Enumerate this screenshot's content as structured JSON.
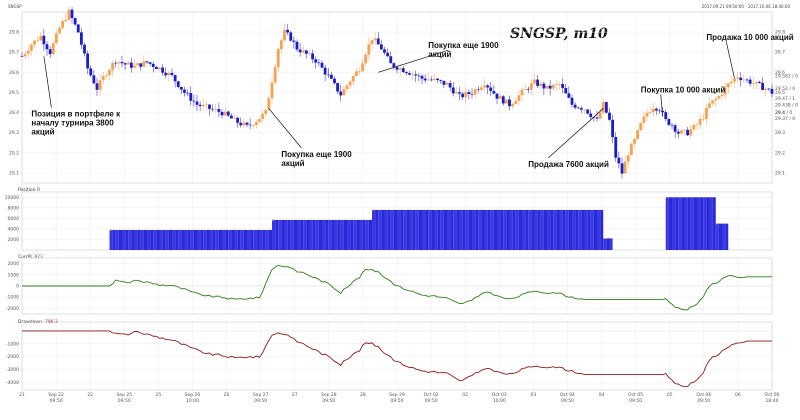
{
  "header": {
    "symbol": "SNGSP",
    "range": "2017.09.21 09:50:00 - 2017.10.06 18:40:00"
  },
  "chart_data": [
    {
      "type": "candlestick",
      "name": "price",
      "title": "SNGSP, m10",
      "ylim": [
        29.05,
        29.9
      ],
      "y_ticks": [
        29.1,
        29.2,
        29.3,
        29.4,
        29.5,
        29.6,
        29.7,
        29.8
      ],
      "right_labels": [
        {
          "y": 29.583,
          "text": "29.583 / 0"
        },
        {
          "y": 29.52,
          "text": "29.52 / 0"
        },
        {
          "y": 29.47,
          "text": "29.47 / 1"
        },
        {
          "y": 29.438,
          "text": "29.438 / 0"
        },
        {
          "y": 29.4,
          "text": "29.4 / 0"
        },
        {
          "y": 29.37,
          "text": "29.37 / 0"
        }
      ],
      "x_labels": [
        {
          "i": 0,
          "l1": "21",
          "l2": ""
        },
        {
          "i": 1,
          "l1": "Sep 22",
          "l2": "09:50"
        },
        {
          "i": 2,
          "l1": "22",
          "l2": ""
        },
        {
          "i": 3,
          "l1": "Sep 25",
          "l2": "09:50"
        },
        {
          "i": 4,
          "l1": "25",
          "l2": ""
        },
        {
          "i": 5,
          "l1": "Sep 26",
          "l2": "10:00"
        },
        {
          "i": 6,
          "l1": "26",
          "l2": ""
        },
        {
          "i": 7,
          "l1": "Sep 27",
          "l2": "09:50"
        },
        {
          "i": 8,
          "l1": "27",
          "l2": ""
        },
        {
          "i": 9,
          "l1": "Sep 28",
          "l2": "09:50"
        },
        {
          "i": 10,
          "l1": "28",
          "l2": ""
        },
        {
          "i": 11,
          "l1": "Sep 29",
          "l2": "09:50"
        },
        {
          "i": 12,
          "l1": "Oct 02",
          "l2": "09:50"
        },
        {
          "i": 13,
          "l1": "02",
          "l2": ""
        },
        {
          "i": 14,
          "l1": "Oct 03",
          "l2": "10:00"
        },
        {
          "i": 15,
          "l1": "03",
          "l2": ""
        },
        {
          "i": 16,
          "l1": "Oct 04",
          "l2": "09:50"
        },
        {
          "i": 17,
          "l1": "04",
          "l2": ""
        },
        {
          "i": 18,
          "l1": "Oct 05",
          "l2": "09:50"
        },
        {
          "i": 19,
          "l1": "05",
          "l2": ""
        },
        {
          "i": 20,
          "l1": "Oct 06",
          "l2": "09:50"
        },
        {
          "i": 21,
          "l1": "06",
          "l2": ""
        },
        {
          "i": 22,
          "l1": "Oct 06",
          "l2": "18:40"
        }
      ],
      "close_path": [
        [
          0,
          29.68
        ],
        [
          3,
          29.74
        ],
        [
          6,
          29.78
        ],
        [
          9,
          29.7
        ],
        [
          12,
          29.82
        ],
        [
          15,
          29.9
        ],
        [
          18,
          29.8
        ],
        [
          21,
          29.62
        ],
        [
          24,
          29.52
        ],
        [
          27,
          29.6
        ],
        [
          30,
          29.66
        ],
        [
          33,
          29.64
        ],
        [
          36,
          29.63
        ],
        [
          40,
          29.65
        ],
        [
          44,
          29.62
        ],
        [
          48,
          29.58
        ],
        [
          52,
          29.5
        ],
        [
          56,
          29.44
        ],
        [
          60,
          29.42
        ],
        [
          64,
          29.4
        ],
        [
          68,
          29.36
        ],
        [
          72,
          29.33
        ],
        [
          75,
          29.36
        ],
        [
          78,
          29.4
        ],
        [
          80,
          29.56
        ],
        [
          82,
          29.72
        ],
        [
          84,
          29.8
        ],
        [
          86,
          29.77
        ],
        [
          88,
          29.72
        ],
        [
          90,
          29.7
        ],
        [
          94,
          29.66
        ],
        [
          98,
          29.58
        ],
        [
          102,
          29.49
        ],
        [
          105,
          29.56
        ],
        [
          108,
          29.62
        ],
        [
          110,
          29.7
        ],
        [
          112,
          29.77
        ],
        [
          115,
          29.72
        ],
        [
          118,
          29.64
        ],
        [
          121,
          29.62
        ],
        [
          124,
          29.6
        ],
        [
          128,
          29.57
        ],
        [
          132,
          29.56
        ],
        [
          136,
          29.54
        ],
        [
          140,
          29.48
        ],
        [
          144,
          29.5
        ],
        [
          148,
          29.55
        ],
        [
          152,
          29.48
        ],
        [
          156,
          29.44
        ],
        [
          160,
          29.5
        ],
        [
          164,
          29.55
        ],
        [
          168,
          29.52
        ],
        [
          172,
          29.54
        ],
        [
          176,
          29.44
        ],
        [
          180,
          29.42
        ],
        [
          184,
          29.36
        ],
        [
          186,
          29.44
        ],
        [
          188,
          29.36
        ],
        [
          190,
          29.18
        ],
        [
          192,
          29.1
        ],
        [
          194,
          29.2
        ],
        [
          196,
          29.26
        ],
        [
          198,
          29.34
        ],
        [
          200,
          29.4
        ],
        [
          202,
          29.43
        ],
        [
          204,
          29.42
        ],
        [
          206,
          29.36
        ],
        [
          208,
          29.34
        ],
        [
          210,
          29.3
        ],
        [
          213,
          29.3
        ],
        [
          216,
          29.34
        ],
        [
          218,
          29.38
        ],
        [
          220,
          29.44
        ],
        [
          223,
          29.48
        ],
        [
          226,
          29.54
        ],
        [
          229,
          29.58
        ],
        [
          232,
          29.56
        ],
        [
          235,
          29.54
        ],
        [
          238,
          29.52
        ],
        [
          240,
          29.5
        ]
      ],
      "annotations": [
        {
          "lines": [
            "Позиция в портфеле к",
            "началу турнира 3800",
            "акций"
          ],
          "anchor": [
            7,
            29.68
          ],
          "text_at": [
            3,
            29.38
          ],
          "type": "none"
        },
        {
          "lines": [
            "Покупка еще 1900",
            "акций"
          ],
          "anchor": [
            79,
            29.42
          ],
          "text_at": [
            83,
            29.18
          ],
          "type": "none"
        },
        {
          "lines": [
            "Покупка еще 1900",
            "акций"
          ],
          "anchor": [
            114,
            29.6
          ],
          "text_at": [
            130,
            29.72
          ],
          "type": "none"
        },
        {
          "lines": [
            "Продажа 7600 акций"
          ],
          "anchor": [
            186,
            29.42
          ],
          "text_at": [
            162,
            29.13
          ],
          "type": "none"
        },
        {
          "lines": [
            "Покупка 10 000 акций"
          ],
          "anchor": [
            205,
            29.38
          ],
          "text_at": [
            198,
            29.5
          ],
          "type": "none"
        },
        {
          "lines": [
            "Продажа 10 000 акций"
          ],
          "anchor": [
            228,
            29.57
          ],
          "text_at": [
            219,
            29.76
          ],
          "type": "none"
        }
      ]
    },
    {
      "type": "bar",
      "name": "Position",
      "label": "Position ",
      "label_value": "0",
      "ylim": [
        0,
        11000
      ],
      "y_ticks": [
        2000,
        4000,
        6000,
        8000,
        10000
      ],
      "segments": [
        {
          "from": 28,
          "to": 80,
          "value": 3800
        },
        {
          "from": 80,
          "to": 112,
          "value": 5700
        },
        {
          "from": 112,
          "to": 186,
          "value": 7600
        },
        {
          "from": 186,
          "to": 189,
          "value": 2200
        },
        {
          "from": 206,
          "to": 222,
          "value": 10000
        },
        {
          "from": 222,
          "to": 226,
          "value": 5000
        }
      ]
    },
    {
      "type": "line",
      "name": "CurrPL",
      "label": "CurrPL ",
      "label_value": "823",
      "ylim": [
        -2500,
        2500
      ],
      "y_ticks": [
        -2000,
        -1000,
        0,
        1000,
        2000
      ],
      "points": [
        [
          0,
          0
        ],
        [
          28,
          0
        ],
        [
          30,
          500
        ],
        [
          33,
          300
        ],
        [
          36,
          450
        ],
        [
          40,
          350
        ],
        [
          44,
          100
        ],
        [
          48,
          50
        ],
        [
          52,
          -300
        ],
        [
          56,
          -700
        ],
        [
          60,
          -900
        ],
        [
          64,
          -1000
        ],
        [
          68,
          -1200
        ],
        [
          72,
          -1100
        ],
        [
          76,
          -1050
        ],
        [
          80,
          1500
        ],
        [
          82,
          1900
        ],
        [
          84,
          1700
        ],
        [
          86,
          1600
        ],
        [
          88,
          1300
        ],
        [
          90,
          1200
        ],
        [
          94,
          700
        ],
        [
          98,
          200
        ],
        [
          102,
          -600
        ],
        [
          105,
          150
        ],
        [
          108,
          800
        ],
        [
          110,
          1500
        ],
        [
          112,
          1400
        ],
        [
          114,
          1300
        ],
        [
          116,
          800
        ],
        [
          118,
          350
        ],
        [
          121,
          -100
        ],
        [
          124,
          -400
        ],
        [
          128,
          -800
        ],
        [
          132,
          -900
        ],
        [
          136,
          -1100
        ],
        [
          140,
          -1600
        ],
        [
          144,
          -1300
        ],
        [
          148,
          -500
        ],
        [
          152,
          -900
        ],
        [
          156,
          -1200
        ],
        [
          160,
          -800
        ],
        [
          164,
          -400
        ],
        [
          168,
          -600
        ],
        [
          172,
          -700
        ],
        [
          176,
          -1000
        ],
        [
          180,
          -1200
        ],
        [
          186,
          -1200
        ],
        [
          206,
          -1200
        ],
        [
          208,
          -1700
        ],
        [
          210,
          -2000
        ],
        [
          213,
          -2100
        ],
        [
          216,
          -1600
        ],
        [
          218,
          -900
        ],
        [
          220,
          50
        ],
        [
          223,
          400
        ],
        [
          226,
          900
        ],
        [
          229,
          800
        ],
        [
          232,
          823
        ],
        [
          240,
          823
        ]
      ]
    },
    {
      "type": "line",
      "name": "Drawdown",
      "label": "Drawdown ",
      "label_value": "-786.3",
      "ylim": [
        -4600,
        700
      ],
      "y_ticks": [
        -4000,
        -3000,
        -2000,
        -1000
      ],
      "points": [
        [
          0,
          0
        ],
        [
          28,
          0
        ],
        [
          30,
          -200
        ],
        [
          33,
          -300
        ],
        [
          36,
          -100
        ],
        [
          40,
          -250
        ],
        [
          44,
          -500
        ],
        [
          48,
          -700
        ],
        [
          52,
          -1100
        ],
        [
          56,
          -1500
        ],
        [
          60,
          -1800
        ],
        [
          64,
          -1900
        ],
        [
          68,
          -2100
        ],
        [
          72,
          -2000
        ],
        [
          76,
          -2050
        ],
        [
          80,
          -300
        ],
        [
          82,
          -100
        ],
        [
          84,
          -300
        ],
        [
          86,
          -500
        ],
        [
          88,
          -800
        ],
        [
          90,
          -1000
        ],
        [
          94,
          -1500
        ],
        [
          98,
          -2000
        ],
        [
          102,
          -2600
        ],
        [
          105,
          -2000
        ],
        [
          108,
          -1500
        ],
        [
          110,
          -900
        ],
        [
          112,
          -1000
        ],
        [
          114,
          -1200
        ],
        [
          116,
          -1700
        ],
        [
          118,
          -2100
        ],
        [
          121,
          -2500
        ],
        [
          124,
          -2800
        ],
        [
          128,
          -3100
        ],
        [
          132,
          -3200
        ],
        [
          136,
          -3300
        ],
        [
          140,
          -3900
        ],
        [
          144,
          -3500
        ],
        [
          148,
          -2900
        ],
        [
          152,
          -3200
        ],
        [
          156,
          -3400
        ],
        [
          160,
          -3000
        ],
        [
          164,
          -2700
        ],
        [
          168,
          -2800
        ],
        [
          172,
          -2900
        ],
        [
          176,
          -3100
        ],
        [
          180,
          -3400
        ],
        [
          186,
          -3400
        ],
        [
          206,
          -3400
        ],
        [
          208,
          -3900
        ],
        [
          210,
          -4200
        ],
        [
          213,
          -4300
        ],
        [
          216,
          -3800
        ],
        [
          218,
          -3200
        ],
        [
          220,
          -2200
        ],
        [
          223,
          -1800
        ],
        [
          226,
          -1300
        ],
        [
          229,
          -900
        ],
        [
          232,
          -786.3
        ],
        [
          240,
          -786.3
        ]
      ]
    }
  ],
  "colors": {
    "bull": "#f5a352",
    "bear": "#1c1cc8",
    "position": "#3838e8",
    "currpl": "#2e7d1a",
    "drawdown": "#8b1a1a",
    "grid": "#ececec"
  }
}
